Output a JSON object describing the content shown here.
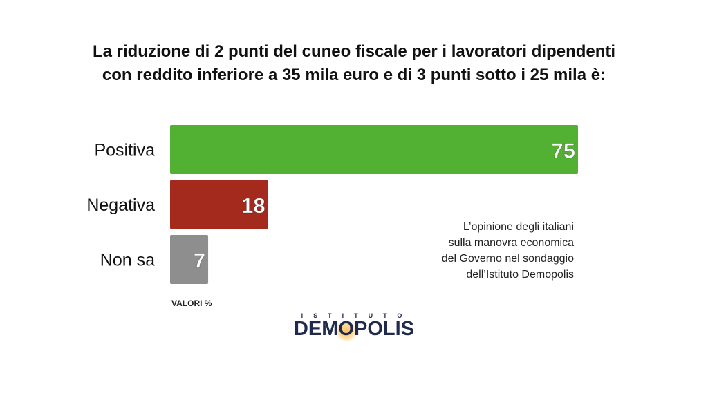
{
  "title_lines": [
    "La riduzione di 2 punti del cuneo fiscale per i lavoratori dipendenti",
    "con reddito inferiore a 35 mila euro e di 3 punti sotto i 25 mila è:"
  ],
  "chart_data": {
    "type": "bar",
    "orientation": "horizontal",
    "categories": [
      "Positiva",
      "Negativa",
      "Non sa"
    ],
    "values": [
      75,
      18,
      7
    ],
    "colors": [
      "#52b032",
      "#a52a1e",
      "#8e8e8e"
    ],
    "xlim": [
      0,
      75
    ],
    "grid": false,
    "units_label": "VALORI %"
  },
  "note_lines": [
    "L’opinione degli italiani",
    "sulla manovra economica",
    "del Governo nel sondaggio",
    "dell’Istituto Demopolis"
  ],
  "logo": {
    "small_text": "ISTITUTO",
    "main_text": "DEMOPOLIS",
    "color": "#1f2a4d",
    "accent": "#ffbe50"
  }
}
